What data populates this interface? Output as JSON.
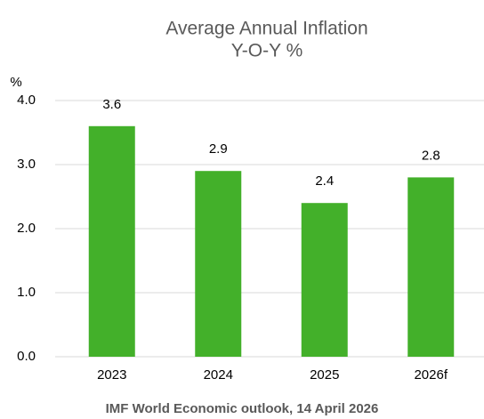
{
  "chart_data": {
    "type": "bar",
    "title": [
      "Average Annual Inflation",
      "Y-O-Y %"
    ],
    "y_label": "%",
    "categories": [
      "2023",
      "2024",
      "2025",
      "2026f"
    ],
    "values": [
      3.6,
      2.9,
      2.4,
      2.8
    ],
    "color": "#43b02a",
    "ylim": [
      0,
      4
    ],
    "yticks": [
      {
        "value": 0,
        "label": "0.0"
      },
      {
        "value": 1,
        "label": "1.0"
      },
      {
        "value": 2,
        "label": "2.0"
      },
      {
        "value": 3,
        "label": "3.0"
      },
      {
        "value": 4,
        "label": "4.0"
      }
    ],
    "grid": true,
    "source": "IMF World Economic outlook, 14 April 2026"
  }
}
